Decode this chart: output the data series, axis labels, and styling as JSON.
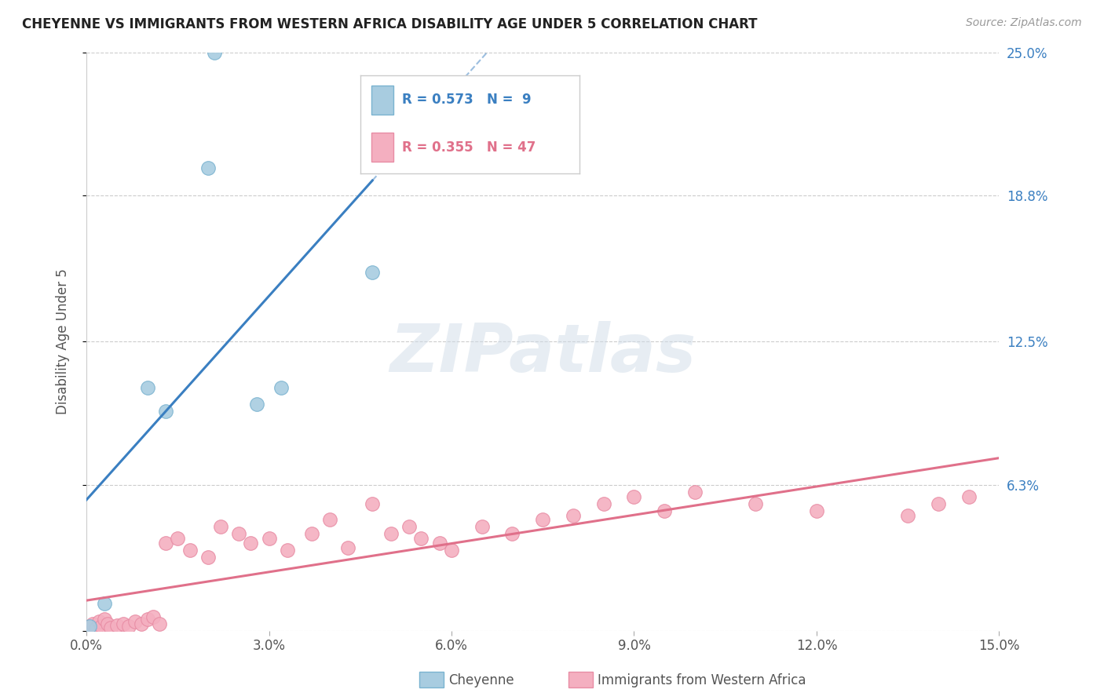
{
  "title": "CHEYENNE VS IMMIGRANTS FROM WESTERN AFRICA DISABILITY AGE UNDER 5 CORRELATION CHART",
  "source": "Source: ZipAtlas.com",
  "ylabel": "Disability Age Under 5",
  "xlim": [
    0.0,
    15.0
  ],
  "ylim": [
    0.0,
    25.0
  ],
  "xtick_values": [
    0.0,
    3.0,
    6.0,
    9.0,
    12.0,
    15.0
  ],
  "ytick_values": [
    0.0,
    6.3,
    12.5,
    18.8,
    25.0
  ],
  "cheyenne_color": "#a8cce0",
  "cheyenne_edge_color": "#7ab3d0",
  "immigrants_color": "#f4afc0",
  "immigrants_edge_color": "#e88ca4",
  "cheyenne_line_color": "#3a7fc1",
  "immigrants_line_color": "#e0708a",
  "background_color": "#ffffff",
  "watermark": "ZIPatlas",
  "cheyenne_x": [
    0.05,
    0.3,
    1.0,
    1.3,
    2.0,
    2.8,
    3.2,
    4.7,
    2.1
  ],
  "cheyenne_y": [
    0.2,
    1.2,
    10.5,
    9.5,
    20.0,
    9.8,
    10.5,
    15.5,
    25.0
  ],
  "immigrants_x": [
    0.05,
    0.1,
    0.15,
    0.2,
    0.25,
    0.3,
    0.35,
    0.4,
    0.5,
    0.6,
    0.7,
    0.8,
    0.9,
    1.0,
    1.1,
    1.2,
    1.3,
    1.5,
    1.7,
    2.0,
    2.2,
    2.5,
    2.7,
    3.0,
    3.3,
    3.7,
    4.0,
    4.3,
    4.7,
    5.0,
    5.3,
    5.5,
    5.8,
    6.0,
    6.5,
    7.0,
    7.5,
    8.0,
    8.5,
    9.0,
    9.5,
    10.0,
    11.0,
    12.0,
    13.5,
    14.0,
    14.5
  ],
  "immigrants_y": [
    0.2,
    0.3,
    0.1,
    0.4,
    0.2,
    0.5,
    0.3,
    0.15,
    0.25,
    0.3,
    0.2,
    0.4,
    0.3,
    0.5,
    0.6,
    0.3,
    3.8,
    4.0,
    3.5,
    3.2,
    4.5,
    4.2,
    3.8,
    4.0,
    3.5,
    4.2,
    4.8,
    3.6,
    5.5,
    4.2,
    4.5,
    4.0,
    3.8,
    3.5,
    4.5,
    4.2,
    4.8,
    5.0,
    5.5,
    5.8,
    5.2,
    6.0,
    5.5,
    5.2,
    5.0,
    5.5,
    5.8
  ],
  "legend_cheyenne_r": "R = 0.573",
  "legend_cheyenne_n": "N =  9",
  "legend_imm_r": "R = 0.355",
  "legend_imm_n": "N = 47"
}
